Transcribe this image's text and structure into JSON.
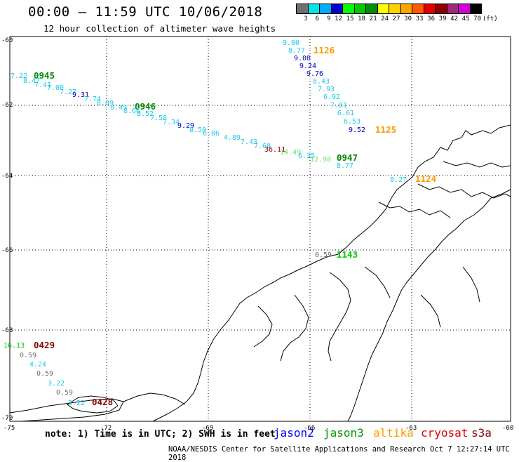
{
  "header": {
    "title": "00:00 – 11:59 UTC 10/06/2018",
    "subtitle": "12 hour collection of altimeter wave heights"
  },
  "legend": {
    "unit": "(ft)",
    "items": [
      {
        "label": "3",
        "color": "#707070"
      },
      {
        "label": "6",
        "color": "#00e6e6"
      },
      {
        "label": "9",
        "color": "#00aaff"
      },
      {
        "label": "12",
        "color": "#0000cd"
      },
      {
        "label": "15",
        "color": "#00ff00"
      },
      {
        "label": "18",
        "color": "#00c800"
      },
      {
        "label": "21",
        "color": "#008c00"
      },
      {
        "label": "24",
        "color": "#ffff00"
      },
      {
        "label": "27",
        "color": "#ffd200"
      },
      {
        "label": "30",
        "color": "#ffa500"
      },
      {
        "label": "33",
        "color": "#ff5a00"
      },
      {
        "label": "36",
        "color": "#e10000"
      },
      {
        "label": "39",
        "color": "#8c0000"
      },
      {
        "label": "42",
        "color": "#a02878"
      },
      {
        "label": "45",
        "color": "#d200d2"
      },
      {
        "label": "70",
        "color": "#000000"
      }
    ]
  },
  "axes": {
    "lat_labels": [
      "-60",
      "-62",
      "-64",
      "-66",
      "-68",
      "-70"
    ],
    "lon_labels": [
      "-75",
      "-72",
      "-69",
      "-66",
      "-63",
      "-60"
    ]
  },
  "tracks": [
    {
      "satellite": "altika",
      "pass_label": {
        "text": "1126",
        "color": "#ff9900"
      },
      "points": [
        {
          "v": "9.00",
          "c": "#1ec8f0"
        },
        {
          "v": "8.77",
          "c": "#1ec8f0"
        },
        {
          "v": "9.08",
          "c": "#0000cd"
        },
        {
          "v": "9.24",
          "c": "#0000cd"
        },
        {
          "v": "9.76",
          "c": "#0000cd"
        },
        {
          "v": "8.43",
          "c": "#1ec8f0"
        },
        {
          "v": "7.93",
          "c": "#1ec8f0"
        },
        {
          "v": "6.92",
          "c": "#1ec8f0"
        },
        {
          "v": "7.81",
          "c": "#1ec8f0"
        },
        {
          "v": "6.61",
          "c": "#1ec8f0"
        },
        {
          "v": "6.53",
          "c": "#1ec8f0"
        },
        {
          "v": "9.52",
          "c": "#0000cd"
        }
      ]
    },
    {
      "satellite": "altika",
      "pass_label": {
        "text": "1125",
        "color": "#ff9900"
      },
      "points": []
    },
    {
      "satellite": "jason3",
      "pass_label": {
        "text": "0945",
        "color": "#008c00"
      },
      "points": [
        {
          "v": "7.22",
          "c": "#1ec8f0"
        },
        {
          "v": "8.47",
          "c": "#1ec8f0"
        },
        {
          "v": "7.41",
          "c": "#1ec8f0"
        },
        {
          "v": "7.00",
          "c": "#1ec8f0"
        },
        {
          "v": "7.27",
          "c": "#1ec8f0"
        },
        {
          "v": "9.31",
          "c": "#0000cd"
        },
        {
          "v": "7.74",
          "c": "#1ec8f0"
        },
        {
          "v": "8.09",
          "c": "#1ec8f0"
        },
        {
          "v": "8.49",
          "c": "#1ec8f0"
        }
      ]
    },
    {
      "satellite": "jason3",
      "pass_label": {
        "text": "0946",
        "color": "#008c00"
      },
      "points": [
        {
          "v": "8.66",
          "c": "#1ec8f0"
        },
        {
          "v": "8.52",
          "c": "#1ec8f0"
        },
        {
          "v": "7.58",
          "c": "#1ec8f0"
        },
        {
          "v": "7.34",
          "c": "#1ec8f0"
        },
        {
          "v": "9.29",
          "c": "#0000cd"
        },
        {
          "v": "8.50",
          "c": "#1ec8f0"
        },
        {
          "v": "6.06",
          "c": "#1ec8f0"
        },
        {
          "v": "4.89",
          "c": "#1ec8f0"
        },
        {
          "v": "7.43",
          "c": "#1ec8f0"
        },
        {
          "v": "7.60",
          "c": "#1ec8f0"
        },
        {
          "v": "36.11",
          "c": "#8c0000"
        },
        {
          "v": "14.49",
          "c": "#66e066"
        },
        {
          "v": "6.35",
          "c": "#1ec8f0"
        },
        {
          "v": "12.98",
          "c": "#66e066"
        }
      ]
    },
    {
      "satellite": "jason3",
      "pass_label": {
        "text": "0947",
        "color": "#008c00"
      },
      "points": [
        {
          "v": "8.77",
          "c": "#1ec8f0"
        }
      ]
    },
    {
      "satellite": "altika",
      "pass_label": {
        "text": "1124",
        "color": "#ff9900"
      },
      "points": [
        {
          "v": "8.27",
          "c": "#1ec8f0"
        }
      ]
    },
    {
      "satellite": "jason3",
      "pass_label": {
        "text": "1143",
        "color": "#00c800"
      },
      "points": [
        {
          "v": "0.59",
          "c": "#707070"
        }
      ]
    },
    {
      "satellite": "cryosat",
      "pass_label": {
        "text": "0429",
        "color": "#8c0000"
      },
      "points": [
        {
          "v": "16.13",
          "c": "#00c800"
        },
        {
          "v": "0.59",
          "c": "#707070"
        },
        {
          "v": "4.24",
          "c": "#1ec8f0"
        },
        {
          "v": "0.59",
          "c": "#707070"
        },
        {
          "v": "3.22",
          "c": "#1ec8f0"
        },
        {
          "v": "0.59",
          "c": "#707070"
        },
        {
          "v": "3.22",
          "c": "#1ec8f0"
        }
      ]
    },
    {
      "satellite": "cryosat",
      "pass_label": {
        "text": "0428",
        "color": "#8c0000"
      },
      "points": []
    }
  ],
  "footer": {
    "note": "note: 1) Time is in UTC; 2) SWH is in feet",
    "satellites": [
      {
        "name": "jason2",
        "color": "#0000ff"
      },
      {
        "name": "jason3",
        "color": "#009900"
      },
      {
        "name": "altika",
        "color": "#ff9900"
      },
      {
        "name": "cryosat",
        "color": "#dd0000"
      },
      {
        "name": "s3a",
        "color": "#8c0000"
      }
    ],
    "credit": "NOAA/NESDIS Center for Satellite Applications and Research   Oct  7 12:27:14 UTC 2018"
  }
}
